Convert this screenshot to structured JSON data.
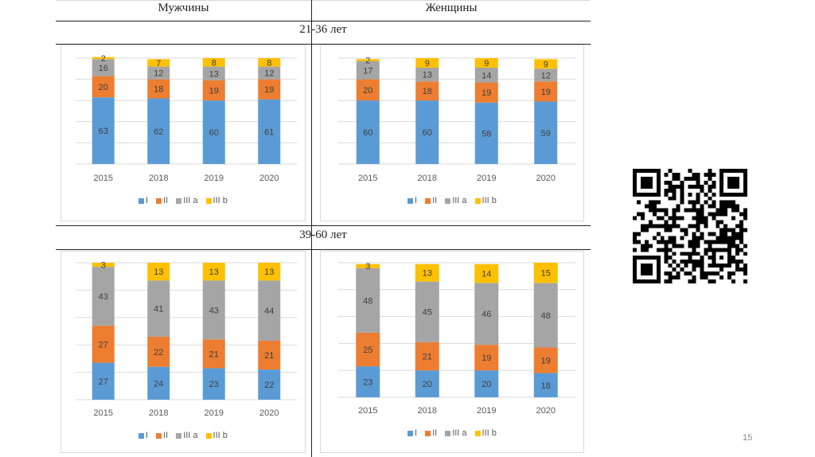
{
  "table": {
    "col_headers": [
      "Мужчины",
      "Женщины"
    ],
    "row_headers": [
      "21-36 лет",
      "39-60 лет"
    ]
  },
  "page_number": "15",
  "qr_code": {
    "icon": "qr-code-icon"
  },
  "colors": {
    "I": "#5b9bd5",
    "II": "#ed7d31",
    "III a": "#a5a5a5",
    "III b": "#ffc000",
    "gridline": "#d9d9d9",
    "label_text": "#404040",
    "axis_text": "#595959"
  },
  "chart_data": [
    {
      "type": "bar",
      "stacked": true,
      "title": "",
      "group": "Мужчины, 21-36 лет",
      "categories": [
        "2015",
        "2018",
        "2019",
        "2020"
      ],
      "series": [
        {
          "name": "I",
          "values": [
            63,
            62,
            60,
            61
          ]
        },
        {
          "name": "II",
          "values": [
            20,
            18,
            19,
            19
          ]
        },
        {
          "name": "III a",
          "values": [
            16,
            12,
            13,
            12
          ]
        },
        {
          "name": "III b",
          "values": [
            2,
            7,
            8,
            8
          ]
        }
      ],
      "ylim": [
        0,
        100
      ],
      "grid": true,
      "legend": "bottom",
      "xlabel": "",
      "ylabel": ""
    },
    {
      "type": "bar",
      "stacked": true,
      "title": "",
      "group": "Женщины, 21-36 лет",
      "categories": [
        "2015",
        "2018",
        "2019",
        "2020"
      ],
      "series": [
        {
          "name": "I",
          "values": [
            60,
            60,
            58,
            59
          ]
        },
        {
          "name": "II",
          "values": [
            20,
            18,
            19,
            19
          ]
        },
        {
          "name": "III a",
          "values": [
            17,
            13,
            14,
            12
          ]
        },
        {
          "name": "III b",
          "values": [
            2,
            9,
            9,
            9
          ]
        }
      ],
      "ylim": [
        0,
        100
      ],
      "grid": true,
      "legend": "bottom",
      "xlabel": "",
      "ylabel": ""
    },
    {
      "type": "bar",
      "stacked": true,
      "title": "",
      "group": "Мужчины, 39-60 лет",
      "categories": [
        "2015",
        "2018",
        "2019",
        "2020"
      ],
      "series": [
        {
          "name": "I",
          "values": [
            27,
            24,
            23,
            22
          ]
        },
        {
          "name": "II",
          "values": [
            27,
            22,
            21,
            21
          ]
        },
        {
          "name": "III a",
          "values": [
            43,
            41,
            43,
            44
          ]
        },
        {
          "name": "III b",
          "values": [
            3,
            13,
            13,
            13
          ]
        }
      ],
      "ylim": [
        0,
        100
      ],
      "grid": true,
      "legend": "bottom",
      "xlabel": "",
      "ylabel": ""
    },
    {
      "type": "bar",
      "stacked": true,
      "title": "",
      "group": "Женщины, 39-60 лет",
      "categories": [
        "2015",
        "2018",
        "2019",
        "2020"
      ],
      "series": [
        {
          "name": "I",
          "values": [
            23,
            20,
            20,
            18
          ]
        },
        {
          "name": "II",
          "values": [
            25,
            21,
            19,
            19
          ]
        },
        {
          "name": "III a",
          "values": [
            48,
            45,
            46,
            48
          ]
        },
        {
          "name": "III b",
          "values": [
            3,
            13,
            14,
            15
          ]
        }
      ],
      "ylim": [
        0,
        100
      ],
      "grid": true,
      "legend": "bottom",
      "xlabel": "",
      "ylabel": ""
    }
  ]
}
